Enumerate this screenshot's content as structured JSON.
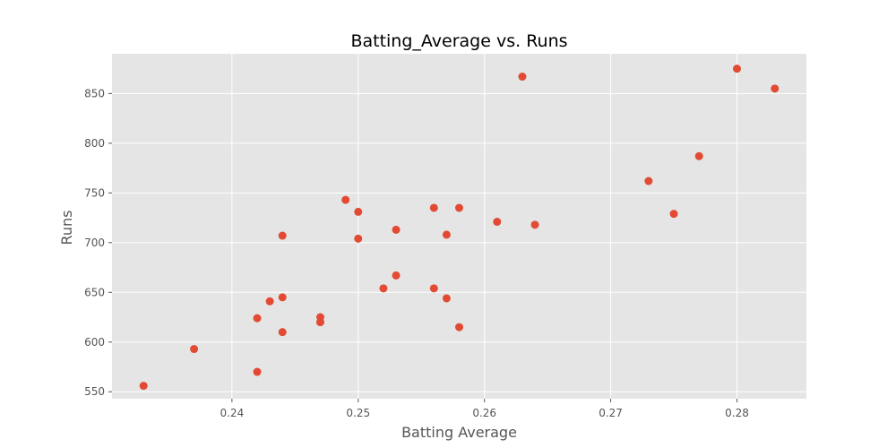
{
  "chart_data": {
    "type": "scatter",
    "title": "Batting_Average vs. Runs",
    "xlabel": "Batting Average",
    "ylabel": "Runs",
    "xlim": [
      0.2305,
      0.2855
    ],
    "ylim": [
      543,
      890
    ],
    "xticks": [
      0.24,
      0.25,
      0.26,
      0.27,
      0.28
    ],
    "xtick_labels": [
      "0.24",
      "0.25",
      "0.26",
      "0.27",
      "0.28"
    ],
    "yticks": [
      550,
      600,
      650,
      700,
      750,
      800,
      850
    ],
    "ytick_labels": [
      "550",
      "600",
      "650",
      "700",
      "750",
      "800",
      "850"
    ],
    "grid": true,
    "legend": "none",
    "colors": {
      "background": "#e5e5e5",
      "grid": "#ffffff",
      "marker": "#e24a33",
      "text": "#555555"
    },
    "series": [
      {
        "x": [
          0.233,
          0.237,
          0.242,
          0.242,
          0.243,
          0.244,
          0.244,
          0.244,
          0.247,
          0.247,
          0.249,
          0.25,
          0.25,
          0.252,
          0.253,
          0.253,
          0.256,
          0.256,
          0.257,
          0.257,
          0.258,
          0.258,
          0.261,
          0.263,
          0.264,
          0.273,
          0.275,
          0.277,
          0.28,
          0.283
        ],
        "y": [
          556,
          593,
          570,
          624,
          641,
          610,
          645,
          707,
          620,
          625,
          743,
          704,
          731,
          654,
          667,
          713,
          654,
          735,
          644,
          708,
          615,
          735,
          721,
          867,
          718,
          762,
          729,
          787,
          875,
          855
        ]
      }
    ]
  }
}
